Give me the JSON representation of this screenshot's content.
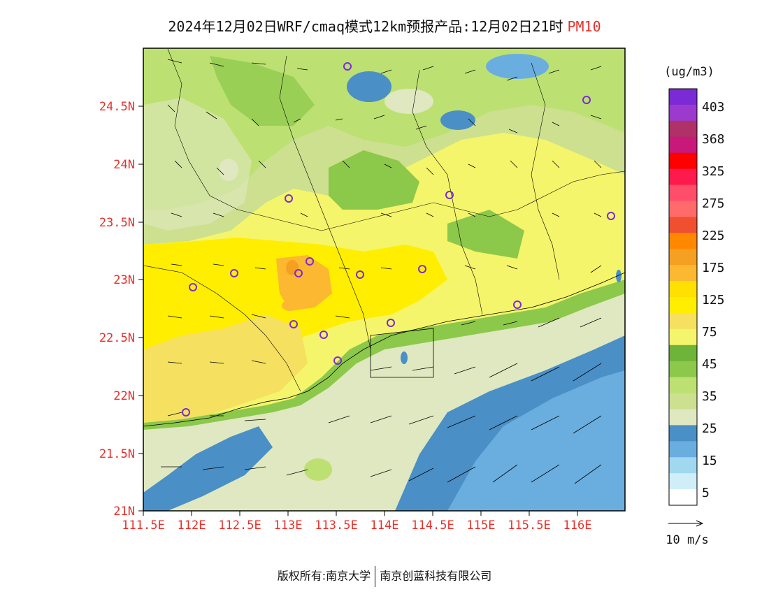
{
  "title": {
    "main": "2024年12月02日WRF/cmaq模式12km预报产品:12月02日21时",
    "variable": "PM10"
  },
  "map": {
    "lat_ticks": [
      "21N",
      "21.5N",
      "22N",
      "22.5N",
      "23N",
      "23.5N",
      "24N",
      "24.5N"
    ],
    "lon_ticks": [
      "111.5E",
      "112E",
      "112.5E",
      "113E",
      "113.5E",
      "114E",
      "114.5E",
      "115E",
      "115.5E",
      "116E"
    ],
    "tick_color": "#e8302a"
  },
  "legend": {
    "unit": "(ug/m3)",
    "labels": [
      "403",
      "368",
      "325",
      "275",
      "225",
      "175",
      "125",
      "75",
      "45",
      "35",
      "25",
      "15",
      "5"
    ],
    "colors": [
      "#7b2bd6",
      "#9b3acc",
      "#b03068",
      "#c8187a",
      "#ff0000",
      "#ff1a4d",
      "#ff4d6a",
      "#ff6a6a",
      "#f05030",
      "#ff8800",
      "#f5a020",
      "#fbb830",
      "#ffe000",
      "#ffee00",
      "#f5e060",
      "#f4f56a",
      "#6eb33a",
      "#8cc84a",
      "#bde072",
      "#cce090",
      "#dfe8c0",
      "#4a8fc6",
      "#6aaee0",
      "#a0d8f0",
      "#d0eef8",
      "#ffffff"
    ],
    "wind_scale": "10 m/s"
  },
  "footer": {
    "left": "版权所有:南京大学",
    "right": "南京创蓝科技有限公司"
  }
}
